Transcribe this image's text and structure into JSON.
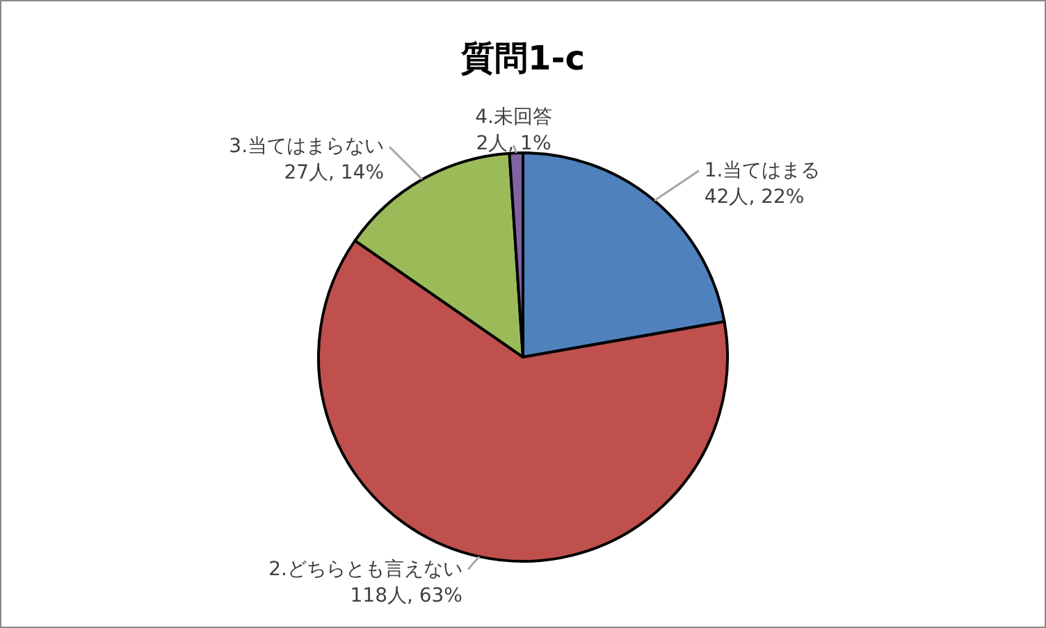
{
  "chart_data": {
    "type": "pie",
    "title": "質問1-c",
    "categories": [
      "1.当てはまる",
      "2.どちらとも言えない",
      "3.当てはまらない",
      "4.未回答"
    ],
    "values": [
      42,
      118,
      27,
      2
    ],
    "colors": [
      "#4f81bd",
      "#c0504d",
      "#9bbb59",
      "#8064a2"
    ],
    "value_labels": [
      "42人, 22%",
      "118人, 63%",
      "27人, 14%",
      "2人, 1%"
    ]
  }
}
